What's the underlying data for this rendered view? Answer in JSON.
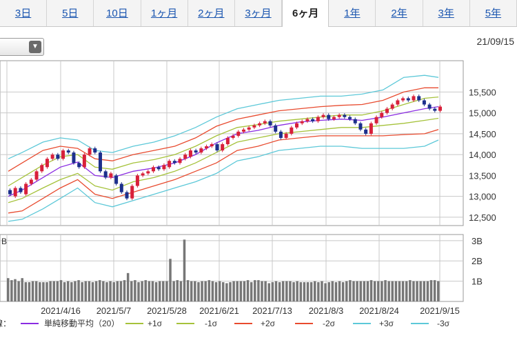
{
  "tabs": [
    {
      "label": "3日",
      "active": false
    },
    {
      "label": "5日",
      "active": false
    },
    {
      "label": "10日",
      "active": false
    },
    {
      "label": "1ヶ月",
      "active": false
    },
    {
      "label": "2ヶ月",
      "active": false
    },
    {
      "label": "3ヶ月",
      "active": false
    },
    {
      "label": "6ヶ月",
      "active": true
    },
    {
      "label": "1年",
      "active": false
    },
    {
      "label": "2年",
      "active": false
    },
    {
      "label": "3年",
      "active": false
    },
    {
      "label": "5年",
      "active": false
    }
  ],
  "dropdown": {
    "icon": "chevron-down-icon",
    "glyph": "▼"
  },
  "date_label": "21/09/15",
  "colors": {
    "ma": "#8a2be2",
    "p1": "#a5c23a",
    "m1": "#a5c23a",
    "p2": "#e84a2e",
    "m2": "#e84a2e",
    "p3": "#5cc8d8",
    "m3": "#5cc8d8",
    "up": "#d8203a",
    "down": "#1c2f8c",
    "volume": "#777777",
    "grid": "#c8c8c8"
  },
  "chart_data": {
    "type": "line",
    "yticks": [
      "15,500",
      "15,000",
      "14,500",
      "14,000",
      "13,500",
      "13,000",
      "12,500"
    ],
    "ylim": [
      12300,
      16250
    ],
    "volume_ticks": [
      "3B",
      "2B",
      "1B"
    ],
    "volume_ylim": [
      0,
      3.3
    ],
    "volume_unit": "B",
    "x_labels": [
      "2021/4/16",
      "2021/5/7",
      "2021/5/28",
      "2021/6/21",
      "2021/7/13",
      "2021/8/3",
      "2021/8/24",
      "2021/9/15"
    ],
    "series": [
      {
        "name": "単純移動平均（20）",
        "key": "ma",
        "x": [
          0,
          4,
          10,
          15,
          20,
          25,
          30,
          36,
          42,
          48,
          54,
          60,
          66,
          72,
          78,
          84,
          90,
          96,
          102,
          108,
          114,
          120,
          124
        ],
        "values": [
          13000,
          13150,
          13450,
          13700,
          13820,
          13500,
          13450,
          13600,
          13680,
          13800,
          14000,
          14280,
          14500,
          14580,
          14700,
          14780,
          14820,
          14850,
          14820,
          14900,
          15000,
          15100,
          15150
        ]
      },
      {
        "name": "+1σ",
        "key": "p1",
        "x": [
          0,
          4,
          10,
          15,
          20,
          25,
          30,
          36,
          42,
          48,
          54,
          60,
          66,
          72,
          78,
          84,
          90,
          96,
          102,
          108,
          114,
          120,
          124
        ],
        "values": [
          13250,
          13450,
          13750,
          13950,
          14000,
          13700,
          13650,
          13800,
          13880,
          14000,
          14200,
          14450,
          14650,
          14720,
          14800,
          14850,
          14900,
          14950,
          14950,
          15050,
          15200,
          15350,
          15380
        ]
      },
      {
        "name": "-1σ",
        "key": "m1",
        "x": [
          0,
          4,
          10,
          15,
          20,
          25,
          30,
          36,
          42,
          48,
          54,
          60,
          66,
          72,
          78,
          84,
          90,
          96,
          102,
          108,
          114,
          120,
          124
        ],
        "values": [
          12850,
          12950,
          13200,
          13400,
          13550,
          13250,
          13150,
          13350,
          13450,
          13600,
          13800,
          14050,
          14300,
          14400,
          14500,
          14550,
          14600,
          14650,
          14650,
          14700,
          14750,
          14820,
          14870
        ]
      },
      {
        "name": "+2σ",
        "key": "p2",
        "x": [
          0,
          4,
          10,
          15,
          20,
          25,
          30,
          36,
          42,
          48,
          54,
          60,
          66,
          72,
          78,
          84,
          90,
          96,
          102,
          108,
          114,
          120,
          124
        ],
        "values": [
          13600,
          13800,
          14100,
          14200,
          14150,
          13900,
          13850,
          14000,
          14100,
          14200,
          14400,
          14680,
          14850,
          14950,
          15050,
          15100,
          15150,
          15180,
          15200,
          15300,
          15500,
          15600,
          15600
        ]
      },
      {
        "name": "-2σ",
        "key": "m2",
        "x": [
          0,
          4,
          10,
          15,
          20,
          25,
          30,
          36,
          42,
          48,
          54,
          60,
          66,
          72,
          78,
          84,
          90,
          96,
          102,
          108,
          114,
          120,
          124
        ],
        "values": [
          12600,
          12650,
          12950,
          13200,
          13400,
          13050,
          12950,
          13100,
          13250,
          13400,
          13600,
          13800,
          14100,
          14200,
          14350,
          14400,
          14450,
          14450,
          14450,
          14450,
          14480,
          14500,
          14600
        ]
      },
      {
        "name": "+3σ",
        "key": "p3",
        "x": [
          0,
          4,
          10,
          15,
          20,
          25,
          30,
          36,
          42,
          48,
          54,
          60,
          66,
          72,
          78,
          84,
          90,
          96,
          102,
          108,
          114,
          120,
          124
        ],
        "values": [
          13900,
          14050,
          14300,
          14400,
          14350,
          14100,
          14050,
          14200,
          14300,
          14450,
          14650,
          14900,
          15100,
          15200,
          15300,
          15350,
          15400,
          15400,
          15450,
          15550,
          15850,
          15900,
          15850
        ]
      },
      {
        "name": "-3σ",
        "key": "m3",
        "x": [
          0,
          4,
          10,
          15,
          20,
          25,
          30,
          36,
          42,
          48,
          54,
          60,
          66,
          72,
          78,
          84,
          90,
          96,
          102,
          108,
          114,
          120,
          124
        ],
        "values": [
          12400,
          12450,
          12700,
          12950,
          13200,
          12850,
          12750,
          12900,
          13050,
          13200,
          13350,
          13550,
          13850,
          13950,
          14100,
          14150,
          14200,
          14200,
          14150,
          14150,
          14150,
          14200,
          14350
        ]
      }
    ],
    "candles": [
      [
        13150,
        13050
      ],
      [
        13000,
        13200
      ],
      [
        13200,
        13100
      ],
      [
        13050,
        13300
      ],
      [
        13300,
        13400
      ],
      [
        13400,
        13600
      ],
      [
        13600,
        13750
      ],
      [
        13700,
        13900
      ],
      [
        13900,
        14000
      ],
      [
        14000,
        13900
      ],
      [
        13900,
        14100
      ],
      [
        14100,
        14050
      ],
      [
        14050,
        13800
      ],
      [
        13800,
        13700
      ],
      [
        13700,
        14000
      ],
      [
        14000,
        14150
      ],
      [
        14150,
        14050
      ],
      [
        14050,
        13600
      ],
      [
        13600,
        13450
      ],
      [
        13450,
        13550
      ],
      [
        13500,
        13300
      ],
      [
        13300,
        13100
      ],
      [
        13100,
        12950
      ],
      [
        12950,
        13250
      ],
      [
        13250,
        13500
      ],
      [
        13500,
        13550
      ],
      [
        13550,
        13600
      ],
      [
        13600,
        13700
      ],
      [
        13700,
        13650
      ],
      [
        13650,
        13750
      ],
      [
        13700,
        13850
      ],
      [
        13850,
        13800
      ],
      [
        13800,
        13900
      ],
      [
        13900,
        14000
      ],
      [
        13950,
        14100
      ],
      [
        14100,
        14050
      ],
      [
        14050,
        14150
      ],
      [
        14150,
        14200
      ],
      [
        14200,
        14250
      ],
      [
        14250,
        14100
      ],
      [
        14100,
        14250
      ],
      [
        14250,
        14400
      ],
      [
        14400,
        14450
      ],
      [
        14450,
        14550
      ],
      [
        14550,
        14600
      ],
      [
        14600,
        14650
      ],
      [
        14650,
        14700
      ],
      [
        14700,
        14750
      ],
      [
        14750,
        14800
      ],
      [
        14800,
        14700
      ],
      [
        14700,
        14550
      ],
      [
        14550,
        14400
      ],
      [
        14400,
        14500
      ],
      [
        14500,
        14650
      ],
      [
        14650,
        14750
      ],
      [
        14750,
        14800
      ],
      [
        14800,
        14850
      ],
      [
        14850,
        14800
      ],
      [
        14800,
        14900
      ],
      [
        14900,
        14950
      ],
      [
        14950,
        14850
      ],
      [
        14850,
        14900
      ],
      [
        14900,
        14950
      ],
      [
        14950,
        14900
      ],
      [
        14900,
        14850
      ],
      [
        14850,
        14750
      ],
      [
        14750,
        14600
      ],
      [
        14600,
        14500
      ],
      [
        14500,
        14750
      ],
      [
        14750,
        14900
      ],
      [
        14900,
        15000
      ],
      [
        15000,
        15100
      ],
      [
        15100,
        15200
      ],
      [
        15200,
        15300
      ],
      [
        15300,
        15350
      ],
      [
        15350,
        15300
      ],
      [
        15300,
        15400
      ],
      [
        15400,
        15300
      ],
      [
        15300,
        15200
      ],
      [
        15200,
        15100
      ],
      [
        15100,
        15050
      ],
      [
        15050,
        15150
      ]
    ],
    "volume": [
      1.15,
      1.05,
      1.1,
      1.0,
      1.15,
      0.95,
      0.95,
      1.0,
      1.0,
      0.95,
      0.95,
      0.95,
      1.0,
      1.0,
      1.0,
      1.05,
      0.95,
      1.0,
      0.95,
      1.0,
      1.05,
      0.95,
      1.0,
      1.0,
      0.95,
      1.0,
      1.05,
      1.0,
      0.95,
      1.0,
      0.95,
      1.0,
      1.0,
      1.05,
      1.4,
      1.0,
      1.05,
      0.95,
      1.0,
      1.05,
      1.0,
      1.0,
      0.95,
      1.0,
      1.0,
      1.0,
      2.1,
      1.0,
      1.05,
      1.0,
      3.05,
      1.05,
      1.0,
      1.0,
      0.95,
      1.0,
      1.0,
      1.05,
      1.0,
      0.95,
      1.0,
      0.95,
      0.9,
      0.95,
      1.0,
      1.0,
      1.0,
      1.0,
      1.05,
      0.95,
      1.05,
      1.05,
      1.0,
      1.0,
      0.9,
      0.95,
      1.0,
      0.95,
      1.0,
      1.0,
      1.0,
      0.95,
      1.0,
      0.95,
      0.95,
      0.95,
      0.95,
      1.0,
      0.95,
      1.0,
      0.9,
      0.95,
      1.0,
      0.95,
      1.0,
      0.95,
      1.0,
      1.05,
      1.0,
      1.0,
      1.0,
      1.0,
      1.0,
      1.05,
      1.0,
      1.0,
      1.0,
      1.05,
      1.0,
      1.0,
      1.0,
      1.0,
      1.0,
      1.0,
      1.05,
      1.0,
      1.0,
      1.0,
      1.0,
      1.0,
      1.05,
      1.05,
      1.0
    ],
    "legend_prefix": "線："
  }
}
